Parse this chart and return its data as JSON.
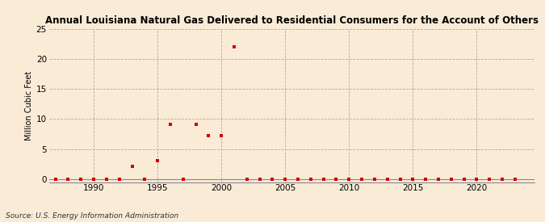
{
  "title": "Annual Louisiana Natural Gas Delivered to Residential Consumers for the Account of Others",
  "ylabel": "Million Cubic Feet",
  "source": "Source: U.S. Energy Information Administration",
  "background_color": "#faebd7",
  "marker_color": "#cc0000",
  "xlim": [
    1986.5,
    2024.5
  ],
  "ylim": [
    -0.5,
    25
  ],
  "yticks": [
    0,
    5,
    10,
    15,
    20,
    25
  ],
  "xticks": [
    1990,
    1995,
    2000,
    2005,
    2010,
    2015,
    2020
  ],
  "data": {
    "years": [
      1987,
      1988,
      1989,
      1990,
      1991,
      1992,
      1993,
      1994,
      1995,
      1996,
      1997,
      1998,
      1999,
      2000,
      2001,
      2002,
      2003,
      2004,
      2005,
      2006,
      2007,
      2008,
      2009,
      2010,
      2011,
      2012,
      2013,
      2014,
      2015,
      2016,
      2017,
      2018,
      2019,
      2020,
      2021,
      2022,
      2023
    ],
    "values": [
      0.0,
      0.0,
      0.0,
      0.0,
      0.0,
      0.0,
      2.1,
      0.0,
      3.1,
      9.1,
      0.0,
      9.1,
      7.2,
      7.2,
      22.0,
      0.0,
      0.0,
      0.0,
      0.0,
      0.0,
      0.0,
      0.0,
      0.0,
      0.0,
      0.0,
      0.0,
      0.0,
      0.0,
      0.0,
      0.0,
      0.0,
      0.0,
      0.0,
      0.0,
      0.0,
      0.0,
      0.0
    ]
  }
}
